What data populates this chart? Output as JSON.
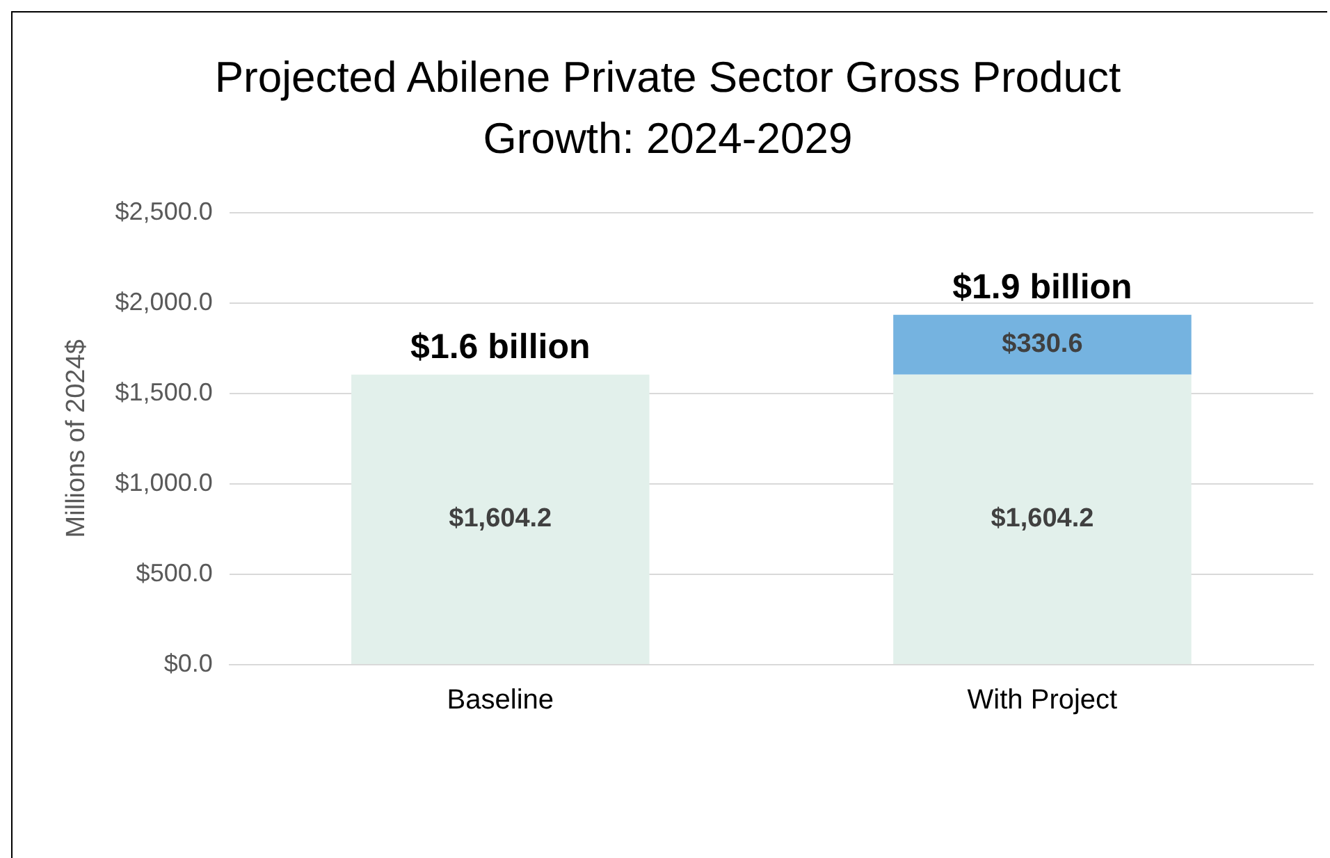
{
  "chart_data": {
    "type": "bar",
    "title": "Projected Abilene Private Sector Gross Product Growth: 2024-2029",
    "ylabel": "Millions of 2024$",
    "categories": [
      "Baseline",
      "With Project"
    ],
    "series": [
      {
        "color": "#e2f0eb",
        "values": [
          1604.2,
          1604.2
        ],
        "value_labels": [
          "$1,604.2",
          "$1,604.2"
        ]
      },
      {
        "color": "#75b3e0",
        "values": [
          null,
          330.6
        ],
        "value_labels": [
          null,
          "$330.6"
        ]
      }
    ],
    "stacked": true,
    "totals": [
      "$1.6 billion",
      "$1.9 billion"
    ],
    "ylim": [
      0,
      2500
    ],
    "yticks": [
      {
        "value": 0,
        "label": "$0.0"
      },
      {
        "value": 500,
        "label": "$500.0"
      },
      {
        "value": 1000,
        "label": "$1,000.0"
      },
      {
        "value": 1500,
        "label": "$1,500.0"
      },
      {
        "value": 2000,
        "label": "$2,000.0"
      },
      {
        "value": 2500,
        "label": "$2,500.0"
      }
    ],
    "grid": "y",
    "legend": false
  }
}
